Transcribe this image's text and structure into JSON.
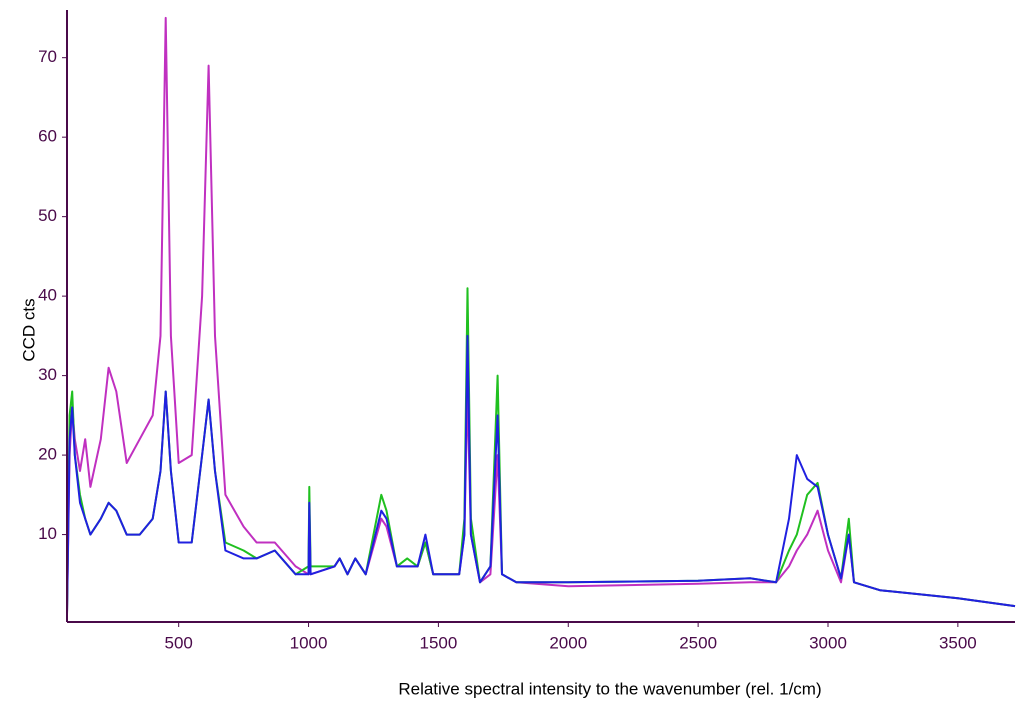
{
  "chart_data": {
    "type": "line",
    "xlabel": "Relative spectral intensity to the wavenumber (rel. 1/cm)",
    "ylabel": "CCD cts",
    "x": [
      70,
      80,
      90,
      100,
      120,
      140,
      160,
      200,
      230,
      260,
      300,
      350,
      400,
      430,
      450,
      470,
      500,
      550,
      590,
      615,
      640,
      680,
      750,
      800,
      870,
      950,
      1000,
      1003,
      1008,
      1100,
      1120,
      1150,
      1180,
      1220,
      1280,
      1300,
      1340,
      1380,
      1420,
      1450,
      1480,
      1580,
      1600,
      1612,
      1625,
      1660,
      1700,
      1728,
      1745,
      1800,
      2000,
      2500,
      2700,
      2800,
      2850,
      2880,
      2920,
      2960,
      3000,
      3050,
      3080,
      3100,
      3200,
      3500,
      3720
    ],
    "series": [
      {
        "name": "magenta",
        "color": "#c030c0",
        "values": [
          0,
          20,
          26,
          22,
          18,
          22,
          16,
          22,
          31,
          28,
          19,
          22,
          25,
          35,
          75,
          35,
          19,
          20,
          40,
          69,
          35,
          15,
          11,
          9,
          9,
          6,
          5,
          13,
          5,
          6,
          7,
          5,
          7,
          5,
          12,
          11,
          6,
          6,
          6,
          9,
          5,
          5,
          10,
          28,
          10,
          4,
          5,
          20,
          5,
          4,
          3.5,
          3.8,
          4,
          4,
          6,
          8,
          10,
          13,
          8,
          4,
          10,
          4,
          3,
          2,
          1
        ]
      },
      {
        "name": "green",
        "color": "#20c020",
        "values": [
          0,
          25,
          28,
          20,
          15,
          12,
          10,
          12,
          14,
          13,
          10,
          10,
          12,
          18,
          28,
          18,
          9,
          9,
          20,
          27,
          18,
          9,
          8,
          7,
          8,
          5,
          6,
          16,
          6,
          6,
          7,
          5,
          7,
          5,
          15,
          13,
          6,
          7,
          6,
          9,
          5,
          5,
          12,
          41,
          12,
          4,
          6,
          30,
          5,
          4,
          4,
          4.2,
          4.5,
          4,
          8,
          10,
          15,
          16.5,
          10,
          4.5,
          12,
          4,
          3,
          2,
          1
        ]
      },
      {
        "name": "blue",
        "color": "#2020e0",
        "values": [
          0,
          22,
          26,
          20,
          14,
          12,
          10,
          12,
          14,
          13,
          10,
          10,
          12,
          18,
          28,
          18,
          9,
          9,
          20,
          27,
          18,
          8,
          7,
          7,
          8,
          5,
          5,
          14,
          5,
          6,
          7,
          5,
          7,
          5,
          13,
          12,
          6,
          6,
          6,
          10,
          5,
          5,
          10,
          35,
          10,
          4,
          6,
          25,
          5,
          4,
          4,
          4.2,
          4.5,
          4,
          12,
          20,
          17,
          16,
          10,
          4.5,
          10,
          4,
          3,
          2,
          1
        ]
      }
    ],
    "xlim": [
      70,
      3720
    ],
    "xticks": [
      500,
      1000,
      1500,
      2000,
      2500,
      3000,
      3500
    ],
    "ylim": [
      -1,
      76
    ],
    "yticks": [
      10,
      20,
      30,
      40,
      50,
      60,
      70
    ]
  }
}
